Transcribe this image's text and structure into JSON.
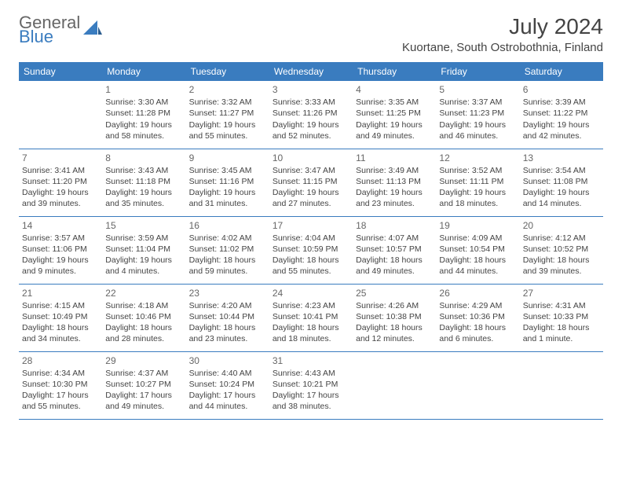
{
  "brand": {
    "part1": "General",
    "part2": "Blue"
  },
  "title": "July 2024",
  "location": "Kuortane, South Ostrobothnia, Finland",
  "colors": {
    "header_bg": "#3a7cbf",
    "header_fg": "#ffffff",
    "border": "#3a7cbf",
    "text": "#444444"
  },
  "weekday_headers": [
    "Sunday",
    "Monday",
    "Tuesday",
    "Wednesday",
    "Thursday",
    "Friday",
    "Saturday"
  ],
  "weeks": [
    [
      null,
      {
        "day": "1",
        "sunrise": "Sunrise: 3:30 AM",
        "sunset": "Sunset: 11:28 PM",
        "daylight": "Daylight: 19 hours and 58 minutes."
      },
      {
        "day": "2",
        "sunrise": "Sunrise: 3:32 AM",
        "sunset": "Sunset: 11:27 PM",
        "daylight": "Daylight: 19 hours and 55 minutes."
      },
      {
        "day": "3",
        "sunrise": "Sunrise: 3:33 AM",
        "sunset": "Sunset: 11:26 PM",
        "daylight": "Daylight: 19 hours and 52 minutes."
      },
      {
        "day": "4",
        "sunrise": "Sunrise: 3:35 AM",
        "sunset": "Sunset: 11:25 PM",
        "daylight": "Daylight: 19 hours and 49 minutes."
      },
      {
        "day": "5",
        "sunrise": "Sunrise: 3:37 AM",
        "sunset": "Sunset: 11:23 PM",
        "daylight": "Daylight: 19 hours and 46 minutes."
      },
      {
        "day": "6",
        "sunrise": "Sunrise: 3:39 AM",
        "sunset": "Sunset: 11:22 PM",
        "daylight": "Daylight: 19 hours and 42 minutes."
      }
    ],
    [
      {
        "day": "7",
        "sunrise": "Sunrise: 3:41 AM",
        "sunset": "Sunset: 11:20 PM",
        "daylight": "Daylight: 19 hours and 39 minutes."
      },
      {
        "day": "8",
        "sunrise": "Sunrise: 3:43 AM",
        "sunset": "Sunset: 11:18 PM",
        "daylight": "Daylight: 19 hours and 35 minutes."
      },
      {
        "day": "9",
        "sunrise": "Sunrise: 3:45 AM",
        "sunset": "Sunset: 11:16 PM",
        "daylight": "Daylight: 19 hours and 31 minutes."
      },
      {
        "day": "10",
        "sunrise": "Sunrise: 3:47 AM",
        "sunset": "Sunset: 11:15 PM",
        "daylight": "Daylight: 19 hours and 27 minutes."
      },
      {
        "day": "11",
        "sunrise": "Sunrise: 3:49 AM",
        "sunset": "Sunset: 11:13 PM",
        "daylight": "Daylight: 19 hours and 23 minutes."
      },
      {
        "day": "12",
        "sunrise": "Sunrise: 3:52 AM",
        "sunset": "Sunset: 11:11 PM",
        "daylight": "Daylight: 19 hours and 18 minutes."
      },
      {
        "day": "13",
        "sunrise": "Sunrise: 3:54 AM",
        "sunset": "Sunset: 11:08 PM",
        "daylight": "Daylight: 19 hours and 14 minutes."
      }
    ],
    [
      {
        "day": "14",
        "sunrise": "Sunrise: 3:57 AM",
        "sunset": "Sunset: 11:06 PM",
        "daylight": "Daylight: 19 hours and 9 minutes."
      },
      {
        "day": "15",
        "sunrise": "Sunrise: 3:59 AM",
        "sunset": "Sunset: 11:04 PM",
        "daylight": "Daylight: 19 hours and 4 minutes."
      },
      {
        "day": "16",
        "sunrise": "Sunrise: 4:02 AM",
        "sunset": "Sunset: 11:02 PM",
        "daylight": "Daylight: 18 hours and 59 minutes."
      },
      {
        "day": "17",
        "sunrise": "Sunrise: 4:04 AM",
        "sunset": "Sunset: 10:59 PM",
        "daylight": "Daylight: 18 hours and 55 minutes."
      },
      {
        "day": "18",
        "sunrise": "Sunrise: 4:07 AM",
        "sunset": "Sunset: 10:57 PM",
        "daylight": "Daylight: 18 hours and 49 minutes."
      },
      {
        "day": "19",
        "sunrise": "Sunrise: 4:09 AM",
        "sunset": "Sunset: 10:54 PM",
        "daylight": "Daylight: 18 hours and 44 minutes."
      },
      {
        "day": "20",
        "sunrise": "Sunrise: 4:12 AM",
        "sunset": "Sunset: 10:52 PM",
        "daylight": "Daylight: 18 hours and 39 minutes."
      }
    ],
    [
      {
        "day": "21",
        "sunrise": "Sunrise: 4:15 AM",
        "sunset": "Sunset: 10:49 PM",
        "daylight": "Daylight: 18 hours and 34 minutes."
      },
      {
        "day": "22",
        "sunrise": "Sunrise: 4:18 AM",
        "sunset": "Sunset: 10:46 PM",
        "daylight": "Daylight: 18 hours and 28 minutes."
      },
      {
        "day": "23",
        "sunrise": "Sunrise: 4:20 AM",
        "sunset": "Sunset: 10:44 PM",
        "daylight": "Daylight: 18 hours and 23 minutes."
      },
      {
        "day": "24",
        "sunrise": "Sunrise: 4:23 AM",
        "sunset": "Sunset: 10:41 PM",
        "daylight": "Daylight: 18 hours and 18 minutes."
      },
      {
        "day": "25",
        "sunrise": "Sunrise: 4:26 AM",
        "sunset": "Sunset: 10:38 PM",
        "daylight": "Daylight: 18 hours and 12 minutes."
      },
      {
        "day": "26",
        "sunrise": "Sunrise: 4:29 AM",
        "sunset": "Sunset: 10:36 PM",
        "daylight": "Daylight: 18 hours and 6 minutes."
      },
      {
        "day": "27",
        "sunrise": "Sunrise: 4:31 AM",
        "sunset": "Sunset: 10:33 PM",
        "daylight": "Daylight: 18 hours and 1 minute."
      }
    ],
    [
      {
        "day": "28",
        "sunrise": "Sunrise: 4:34 AM",
        "sunset": "Sunset: 10:30 PM",
        "daylight": "Daylight: 17 hours and 55 minutes."
      },
      {
        "day": "29",
        "sunrise": "Sunrise: 4:37 AM",
        "sunset": "Sunset: 10:27 PM",
        "daylight": "Daylight: 17 hours and 49 minutes."
      },
      {
        "day": "30",
        "sunrise": "Sunrise: 4:40 AM",
        "sunset": "Sunset: 10:24 PM",
        "daylight": "Daylight: 17 hours and 44 minutes."
      },
      {
        "day": "31",
        "sunrise": "Sunrise: 4:43 AM",
        "sunset": "Sunset: 10:21 PM",
        "daylight": "Daylight: 17 hours and 38 minutes."
      },
      null,
      null,
      null
    ]
  ]
}
